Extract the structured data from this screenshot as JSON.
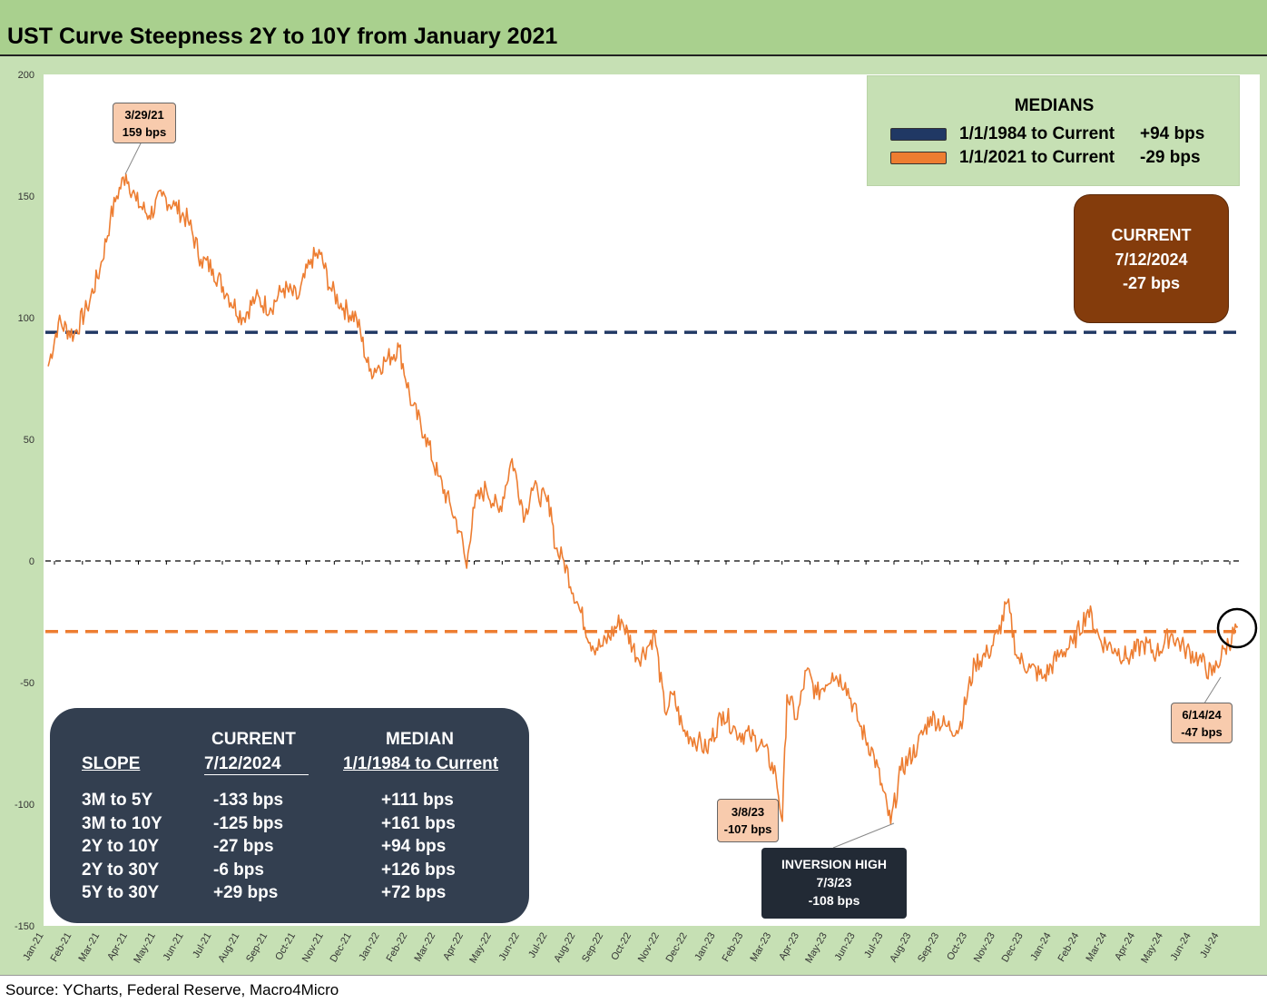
{
  "title": "UST Curve Steepness 2Y to 10Y from January 2021",
  "source": "Source: YCharts, Federal Reserve, Macro4Micro",
  "colors": {
    "line": "#ed7d31",
    "median_1984": "#203864",
    "median_2021": "#ed7d31",
    "current_box": "#843c0c",
    "slope_box": "#333f50",
    "inversion_box": "#222a35",
    "callout": "#f8cbad",
    "frame": "#c6e0b4"
  },
  "medians_box": {
    "title": "MEDIANS",
    "rows": [
      {
        "label": "1/1/1984 to Current",
        "value": "+94 bps",
        "color": "#203864"
      },
      {
        "label": "1/1/2021 to Current",
        "value": "-29 bps",
        "color": "#ed7d31"
      }
    ]
  },
  "current_box": {
    "line1": "CURRENT",
    "line2": "7/12/2024",
    "line3": "-27 bps"
  },
  "slope_table": {
    "header_current_1": "CURRENT",
    "header_current_2": "7/12/2024",
    "header_median_1": "MEDIAN",
    "header_median_2": "1/1/1984 to Current",
    "header_slope": "SLOPE",
    "rows": [
      {
        "slope": "3M to 5Y",
        "current": "-133 bps",
        "median": "+111 bps"
      },
      {
        "slope": "3M to 10Y",
        "current": "-125 bps",
        "median": "+161 bps"
      },
      {
        "slope": "2Y to 10Y",
        "current": "-27 bps",
        "median": "+94 bps"
      },
      {
        "slope": "2Y to 30Y",
        "current": "-6 bps",
        "median": "+126 bps"
      },
      {
        "slope": "5Y to 30Y",
        "current": "+29 bps",
        "median": "+72 bps"
      }
    ]
  },
  "callouts": {
    "peak": {
      "date": "3/29/21",
      "value": "159 bps"
    },
    "march23": {
      "date": "3/8/23",
      "value": "-107 bps"
    },
    "inversion": {
      "title": "INVERSION HIGH",
      "date": "7/3/23",
      "value": "-108 bps"
    },
    "june24": {
      "date": "6/14/24",
      "value": "-47 bps"
    }
  },
  "chart_data": {
    "type": "line",
    "title": "UST Curve Steepness 2Y to 10Y from January 2021",
    "ylim": [
      -150,
      200
    ],
    "yticks": [
      200,
      150,
      100,
      50,
      0,
      -50,
      -100,
      -150
    ],
    "x_ticks": [
      "Jan-21",
      "Feb-21",
      "Mar-21",
      "Apr-21",
      "May-21",
      "Jun-21",
      "Jul-21",
      "Aug-21",
      "Sep-21",
      "Oct-21",
      "Nov-21",
      "Dec-21",
      "Jan-22",
      "Feb-22",
      "Mar-22",
      "Apr-22",
      "May-22",
      "Jun-22",
      "Jul-22",
      "Aug-22",
      "Sep-22",
      "Oct-22",
      "Nov-22",
      "Dec-22",
      "Jan-23",
      "Feb-23",
      "Mar-23",
      "Apr-23",
      "May-23",
      "Jun-23",
      "Jul-23",
      "Aug-23",
      "Sep-23",
      "Oct-23",
      "Nov-23",
      "Dec-23",
      "Jan-24",
      "Feb-24",
      "Mar-24",
      "Apr-24",
      "May-24",
      "Jun-24",
      "Jul-24"
    ],
    "reference_lines": [
      {
        "value": 94,
        "style": "dashed",
        "color": "#203864"
      },
      {
        "value": -29,
        "style": "dashed",
        "color": "#ed7d31"
      },
      {
        "value": 0,
        "style": "dashed",
        "color": "#000000"
      }
    ],
    "series": [
      {
        "color": "#ed7d31",
        "x": [
          "2021-01-04",
          "2021-01-15",
          "2021-02-01",
          "2021-02-15",
          "2021-03-01",
          "2021-03-12",
          "2021-03-19",
          "2021-03-29",
          "2021-04-09",
          "2021-04-23",
          "2021-05-07",
          "2021-05-21",
          "2021-06-04",
          "2021-06-18",
          "2021-07-01",
          "2021-07-16",
          "2021-08-02",
          "2021-08-16",
          "2021-09-01",
          "2021-09-15",
          "2021-10-01",
          "2021-10-15",
          "2021-10-25",
          "2021-11-05",
          "2021-11-19",
          "2021-12-03",
          "2021-12-17",
          "2022-01-03",
          "2022-01-18",
          "2022-02-01",
          "2022-02-15",
          "2022-03-01",
          "2022-03-15",
          "2022-03-25",
          "2022-04-01",
          "2022-04-08",
          "2022-04-22",
          "2022-05-06",
          "2022-05-20",
          "2022-06-03",
          "2022-06-10",
          "2022-06-17",
          "2022-07-01",
          "2022-07-06",
          "2022-07-15",
          "2022-08-01",
          "2022-08-15",
          "2022-08-26",
          "2022-09-15",
          "2022-10-03",
          "2022-10-14",
          "2022-10-21",
          "2022-11-01",
          "2022-11-10",
          "2022-11-21",
          "2022-12-07",
          "2022-12-16",
          "2023-01-03",
          "2023-01-17",
          "2023-02-01",
          "2023-02-15",
          "2023-03-01",
          "2023-03-08",
          "2023-03-13",
          "2023-03-24",
          "2023-04-03",
          "2023-04-14",
          "2023-05-01",
          "2023-05-15",
          "2023-05-31",
          "2023-06-15",
          "2023-07-03",
          "2023-07-14",
          "2023-08-01",
          "2023-08-15",
          "2023-09-01",
          "2023-09-15",
          "2023-10-02",
          "2023-10-16",
          "2023-10-27",
          "2023-11-06",
          "2023-11-17",
          "2023-12-01",
          "2023-12-15",
          "2024-01-02",
          "2024-01-16",
          "2024-02-01",
          "2024-02-15",
          "2024-03-01",
          "2024-03-15",
          "2024-04-01",
          "2024-04-15",
          "2024-05-01",
          "2024-05-15",
          "2024-05-31",
          "2024-06-14",
          "2024-06-28",
          "2024-07-12"
        ],
        "values": [
          80,
          98,
          93,
          104,
          120,
          140,
          150,
          159,
          148,
          142,
          150,
          146,
          140,
          124,
          120,
          110,
          100,
          108,
          104,
          112,
          108,
          124,
          126,
          112,
          104,
          100,
          78,
          82,
          88,
          64,
          52,
          35,
          22,
          12,
          -3,
          22,
          30,
          20,
          42,
          18,
          30,
          28,
          22,
          5,
          0,
          -20,
          -35,
          -35,
          -24,
          -40,
          -35,
          -30,
          -62,
          -55,
          -70,
          -74,
          -78,
          -62,
          -70,
          -72,
          -76,
          -88,
          -107,
          -55,
          -65,
          -45,
          -55,
          -46,
          -50,
          -68,
          -80,
          -108,
          -86,
          -76,
          -64,
          -68,
          -69,
          -42,
          -38,
          -30,
          -17,
          -40,
          -44,
          -48,
          -38,
          -34,
          -20,
          -33,
          -36,
          -40,
          -34,
          -38,
          -30,
          -36,
          -40,
          -47,
          -36,
          -27
        ]
      }
    ]
  }
}
